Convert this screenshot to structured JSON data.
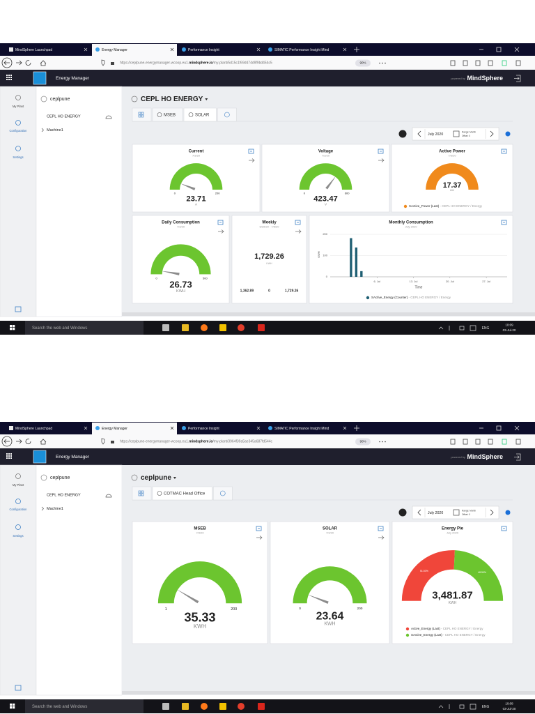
{
  "screens": [
    {
      "browser": {
        "tabs": [
          "MindSphere Launchpad",
          "Energy Manager",
          "Performance Insight",
          "SIMATIC Performance Insight Mind"
        ],
        "url_prefix": "https://ceplpune-energymanager-wcoop.eu1.",
        "url_host": "mindsphere.io",
        "url_path": "/my-plant/5d15c1f69d474d9f9bd454c5",
        "zoom": "90%"
      },
      "app": {
        "title": "Energy Manager",
        "powered_by": "powered by",
        "brand": "MindSphere"
      },
      "nav": [
        "My Plant",
        "Configuration",
        "Settings"
      ],
      "tree": {
        "root": "ceplpune",
        "asset": "CEPL HO ENERGY",
        "child": "Machine1"
      },
      "page": {
        "title": "CEPL HO ENERGY",
        "tabs": [
          "MSEB",
          "SOLAR"
        ],
        "date": "July 2020",
        "range": "Range: Month",
        "offset": "Offset: 0"
      },
      "widgets": [
        {
          "type": "gauge",
          "title": "Current",
          "date": "7/3/20",
          "min": 0,
          "max": 200,
          "value": 23.71,
          "unit": "A",
          "color": "#6cc52f"
        },
        {
          "type": "gauge",
          "title": "Voltage",
          "date": "7/3/20",
          "min": 0,
          "max": 600,
          "value": 423.47,
          "unit": "V",
          "color": "#6cc52f"
        },
        {
          "type": "gauge",
          "title": "Active Power",
          "date": "7/3/20",
          "value": 17.37,
          "unit": "kW",
          "color": "#f08a1c",
          "legend": "SActive_Power (Last)",
          "legend_source": " - CEPL HO ENERGY / Energy"
        },
        {
          "type": "gauge",
          "title": "Daily Consumption",
          "date": "7/3/20",
          "min": 0,
          "max": 500,
          "value": 26.73,
          "unit": "KWH",
          "color": "#6cc52f"
        },
        {
          "type": "stat",
          "title": "Weekly",
          "date": "6/29/20 - 7/5/20",
          "value": "1,729.26",
          "unit": "KWH",
          "stats": [
            "1,362.89",
            "0",
            "1,729.26"
          ]
        },
        {
          "type": "bar",
          "title": "Monthly Consumption",
          "date": "July 2020",
          "x": [
            1,
            2,
            3
          ],
          "values": [
            182,
            138,
            26.73
          ],
          "xlim": [
            -3,
            31
          ],
          "xticks": [
            {
              "value": 6,
              "label": "6. Jul"
            },
            {
              "value": 13,
              "label": "13. Jul"
            },
            {
              "value": 20,
              "label": "20. Jul"
            },
            {
              "value": 27,
              "label": "27. Jul"
            }
          ],
          "ylim": [
            0,
            210
          ],
          "yticks": [
            0,
            100,
            200
          ],
          "xlabel": "Time",
          "ylabel": "KWH",
          "color": "#1f5f73",
          "legend": "SActive_Energy (Counter)",
          "legend_source": " - CEPL HO ENERGY / Energy"
        }
      ],
      "taskbar": {
        "search": "Search the web and Windows",
        "lang": "ENG",
        "time": "10:09",
        "date": "03-Jul-20"
      }
    },
    {
      "browser": {
        "tabs": [
          "MindSphere Launchpad",
          "Energy Manager",
          "Performance Insight",
          "SIMATIC Performance Insight Mind"
        ],
        "url_prefix": "https://ceplpune-energymanager-wcoop.eu1.",
        "url_host": "mindsphere.io",
        "url_path": "/my-plant/3964f39a5ae345a687fd544c",
        "zoom": "90%"
      },
      "app": {
        "title": "Energy Manager",
        "powered_by": "powered by",
        "brand": "MindSphere"
      },
      "nav": [
        "My Plant",
        "Configuration",
        "Settings"
      ],
      "tree": {
        "root": "ceplpune",
        "asset": "CEPL HO ENERGY",
        "child": "Machine1"
      },
      "page": {
        "title": "ceplpune",
        "tabs": [
          "COTMAC Head Office"
        ],
        "date": "July 2020",
        "range": "Range: Month",
        "offset": "Offset: 0"
      },
      "widgets": [
        {
          "type": "gauge",
          "title": "MSEB",
          "date": "7/3/20",
          "min": 1,
          "max": 200,
          "value": 35.33,
          "unit": "KWH",
          "color": "#6cc52f"
        },
        {
          "type": "gauge",
          "title": "SOLAR",
          "date": "7/3/20",
          "min": 0,
          "max": 200,
          "value": 23.64,
          "unit": "KWH",
          "color": "#6cc52f"
        },
        {
          "type": "pie",
          "title": "Energy Pie",
          "date": "July 2020",
          "value": "3,481.87",
          "unit": "KWH",
          "series": [
            {
              "name": "Active_Energy (Last)",
              "source": " - CEPL HO ENERGY / Energy",
              "color": "#f0463a",
              "value": 51.5,
              "value_label": "51.50%"
            },
            {
              "name": "SActive_Energy (Last)",
              "source": " - CEPL HO ENERGY / Energy",
              "color": "#6cc52f",
              "value": 48.5,
              "value_label": "48.50%"
            }
          ]
        }
      ],
      "taskbar": {
        "search": "Search the web and Windows",
        "lang": "ENG",
        "time": "10:08",
        "date": "03-Jul-20"
      }
    }
  ]
}
